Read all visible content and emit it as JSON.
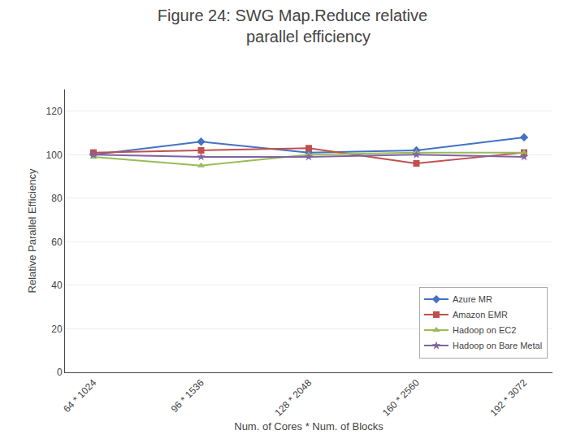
{
  "chart_data": {
    "type": "line",
    "title": "Figure 24: SWG Map.Reduce relative\n       parallel efficiency",
    "xlabel": "Num. of Cores * Num. of Blocks",
    "ylabel": "Relative Parallel Efficiency",
    "categories": [
      "64 * 1024",
      "96 * 1536",
      "128 * 2048",
      "160 * 2560",
      "192 * 3072"
    ],
    "series": [
      {
        "name": "Azure MR",
        "color": "#4472C4",
        "marker": "diamond",
        "values": [
          100,
          106,
          101,
          102,
          108
        ]
      },
      {
        "name": "Amazon EMR",
        "color": "#C0504D",
        "marker": "square",
        "values": [
          101,
          102,
          103,
          96,
          101
        ]
      },
      {
        "name": "Hadoop on EC2",
        "color": "#9BBB59",
        "marker": "triangle-up",
        "values": [
          99,
          95,
          100,
          101,
          101
        ]
      },
      {
        "name": "Hadoop on Bare Metal",
        "color": "#8064A2",
        "marker": "star",
        "values": [
          100,
          99,
          99,
          100,
          99
        ]
      }
    ],
    "ylim": [
      0,
      130
    ],
    "yticks": [
      0,
      20,
      40,
      60,
      80,
      100,
      120
    ],
    "grid": true,
    "legend": "lower right"
  }
}
